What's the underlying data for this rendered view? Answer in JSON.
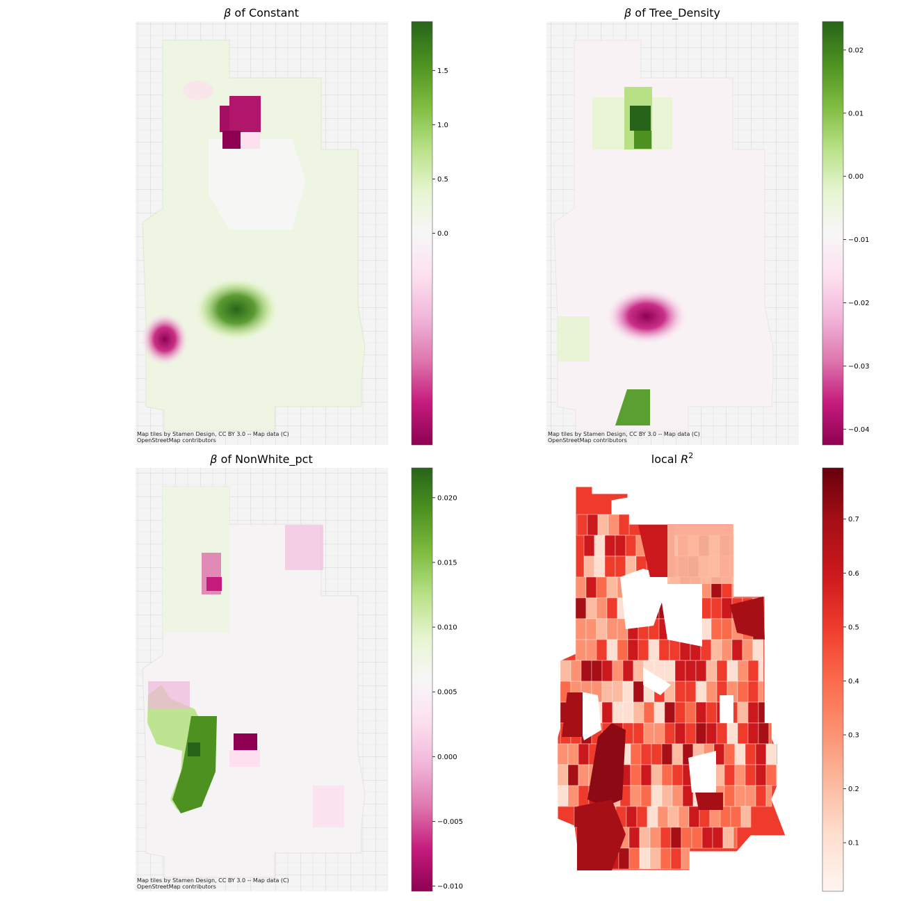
{
  "chart_data": [
    {
      "type": "heatmap",
      "title_beta": "β",
      "title_rest": " of Constant",
      "basemap": true,
      "colormap": "PiYG",
      "colorbar_ticks": [
        "1.5",
        "1.0",
        "0.5",
        "0.0"
      ],
      "colorbar_tick_values": [
        1.5,
        1.0,
        0.5,
        0.0
      ],
      "colorbar_range": [
        -1.95,
        1.95
      ],
      "attribution_line1": "Map tiles by Stamen Design, CC BY 3.0 -- Map data (C)",
      "attribution_line2": "OpenStreetMap contributors",
      "hotspots": [
        {
          "sign": "negative",
          "intensity": 1.0
        },
        {
          "sign": "positive",
          "intensity": 0.95
        },
        {
          "sign": "negative",
          "intensity": 0.8
        }
      ]
    },
    {
      "type": "heatmap",
      "title_beta": "β",
      "title_rest": " of Tree_Density",
      "basemap": true,
      "colormap": "PiYG",
      "colorbar_ticks": [
        "0.02",
        "0.01",
        "0.00",
        "−0.01",
        "−0.02",
        "−0.03",
        "−0.04"
      ],
      "colorbar_tick_values": [
        0.02,
        0.01,
        0.0,
        -0.01,
        -0.02,
        -0.03,
        -0.04
      ],
      "colorbar_range": [
        -0.0425,
        0.0245
      ],
      "attribution_line1": "Map tiles by Stamen Design, CC BY 3.0 -- Map data (C)",
      "attribution_line2": "OpenStreetMap contributors",
      "hotspots": [
        {
          "sign": "positive",
          "intensity": 1.0
        },
        {
          "sign": "negative",
          "intensity": 1.0
        },
        {
          "sign": "positive",
          "intensity": 0.75
        }
      ]
    },
    {
      "type": "heatmap",
      "title_beta": "β",
      "title_rest": " of NonWhite_pct",
      "basemap": true,
      "colormap": "PiYG",
      "colorbar_ticks": [
        "0.020",
        "0.015",
        "0.010",
        "0.005",
        "0.000",
        "−0.005",
        "−0.010"
      ],
      "colorbar_tick_values": [
        0.02,
        0.015,
        0.01,
        0.005,
        0.0,
        -0.005,
        -0.01
      ],
      "colorbar_range": [
        -0.0104,
        0.0223
      ],
      "attribution_line1": "Map tiles by Stamen Design, CC BY 3.0 -- Map data (C)",
      "attribution_line2": "OpenStreetMap contributors",
      "hotspots": [
        {
          "sign": "positive",
          "intensity": 0.9
        },
        {
          "sign": "negative",
          "intensity": 1.0
        },
        {
          "sign": "negative",
          "intensity": 0.6
        }
      ]
    },
    {
      "type": "heatmap",
      "title_pre": "local ",
      "title_math": "R",
      "title_sup": "2",
      "basemap": false,
      "colormap": "Reds",
      "colorbar_ticks": [
        "0.7",
        "0.6",
        "0.5",
        "0.4",
        "0.3",
        "0.2",
        "0.1"
      ],
      "colorbar_tick_values": [
        0.7,
        0.6,
        0.5,
        0.4,
        0.3,
        0.2,
        0.1
      ],
      "colorbar_range": [
        0.01,
        0.795
      ]
    }
  ]
}
